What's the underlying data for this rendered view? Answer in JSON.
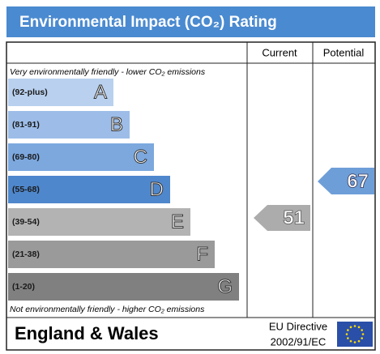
{
  "header": {
    "title": "Environmental Impact (CO₂) Rating"
  },
  "columns": {
    "current": "Current",
    "potential": "Potential"
  },
  "top_note": "Very environmentally friendly - lower CO₂ emissions",
  "bottom_note": "Not environmentally friendly - higher CO₂ emissions",
  "bands": [
    {
      "range": "(92-plus)",
      "letter": "A",
      "color": "#b9d1ef"
    },
    {
      "range": "(81-91)",
      "letter": "B",
      "color": "#9dbde8"
    },
    {
      "range": "(69-80)",
      "letter": "C",
      "color": "#7ca8de"
    },
    {
      "range": "(55-68)",
      "letter": "D",
      "color": "#4f87cc"
    },
    {
      "range": "(39-54)",
      "letter": "E",
      "color": "#b3b3b3"
    },
    {
      "range": "(21-38)",
      "letter": "F",
      "color": "#9a9a9a"
    },
    {
      "range": "(1-20)",
      "letter": "G",
      "color": "#808080"
    }
  ],
  "current": {
    "value": "51",
    "color": "#acacac"
  },
  "potential": {
    "value": "67",
    "color": "#6e9ed8"
  },
  "footer": {
    "region": "England & Wales",
    "directive_line1": "EU Directive",
    "directive_line2": "2002/91/EC"
  }
}
